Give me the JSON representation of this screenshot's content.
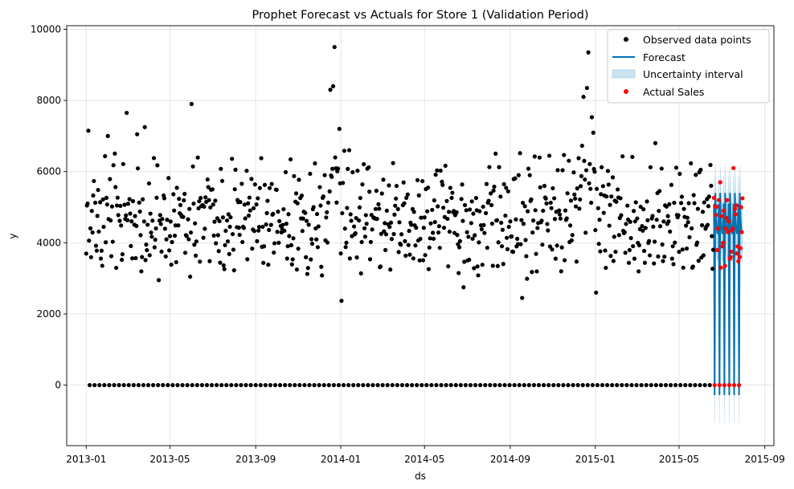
{
  "chart_data": {
    "type": "scatter",
    "title": "Prophet Forecast vs Actuals for Store 1 (Validation Period)",
    "xlabel": "ds",
    "ylabel": "y",
    "x_range": [
      "2012-12-04",
      "2015-09-14"
    ],
    "ylim": [
      -1700,
      10100
    ],
    "x_ticks": [
      "2013-01-01",
      "2013-05-01",
      "2013-09-01",
      "2014-01-01",
      "2014-05-01",
      "2014-09-01",
      "2015-01-01",
      "2015-05-01",
      "2015-09-01"
    ],
    "x_tick_labels": [
      "2013-01",
      "2013-05",
      "2013-09",
      "2014-01",
      "2014-05",
      "2014-09",
      "2015-01",
      "2015-05",
      "2015-09"
    ],
    "y_ticks": [
      0,
      2000,
      4000,
      6000,
      8000,
      10000
    ],
    "y_tick_labels": [
      "0",
      "2000",
      "4000",
      "6000",
      "8000",
      "10000"
    ],
    "grid": true,
    "legend_position": "top-right",
    "legend": [
      {
        "label": "Observed data points",
        "kind": "dot",
        "color": "#000000"
      },
      {
        "label": "Forecast",
        "kind": "line",
        "color": "#0072B2"
      },
      {
        "label": "Uncertainty interval",
        "kind": "band",
        "color": "#0072B2"
      },
      {
        "label": "Actual Sales",
        "kind": "dot",
        "color": "#ff0000"
      }
    ],
    "series": [
      {
        "name": "Observed data points",
        "color": "#000000",
        "x_start": "2013-01-01",
        "x_end": "2015-06-19",
        "sunday_value": 0,
        "weekly_pattern": [
          5500,
          4600,
          4300,
          4100,
          4400,
          5100
        ],
        "noise_amplitude": 1400,
        "outliers": [
          {
            "x": "2013-01-04",
            "y": 7150
          },
          {
            "x": "2013-02-01",
            "y": 7000
          },
          {
            "x": "2013-02-28",
            "y": 7650
          },
          {
            "x": "2013-03-15",
            "y": 7050
          },
          {
            "x": "2013-03-26",
            "y": 7250
          },
          {
            "x": "2013-04-15",
            "y": 2950
          },
          {
            "x": "2013-06-01",
            "y": 7900
          },
          {
            "x": "2013-12-17",
            "y": 8300
          },
          {
            "x": "2013-12-21",
            "y": 8400
          },
          {
            "x": "2013-12-23",
            "y": 9500
          },
          {
            "x": "2013-12-30",
            "y": 7200
          },
          {
            "x": "2014-01-02",
            "y": 2370
          },
          {
            "x": "2014-06-26",
            "y": 2750
          },
          {
            "x": "2014-09-18",
            "y": 2450
          },
          {
            "x": "2014-12-15",
            "y": 8100
          },
          {
            "x": "2014-12-20",
            "y": 8350
          },
          {
            "x": "2014-12-22",
            "y": 9350
          },
          {
            "x": "2015-01-02",
            "y": 2600
          },
          {
            "x": "2015-03-28",
            "y": 6800
          }
        ]
      },
      {
        "name": "Forecast",
        "color": "#0072B2",
        "x_start": "2015-06-20",
        "x_end": "2015-07-31",
        "sunday_value": -280,
        "weekday_values": [
          5400,
          4700,
          4400,
          4250,
          4350,
          5100
        ]
      },
      {
        "name": "Uncertainty interval",
        "color": "#0072B2",
        "half_width": 780
      },
      {
        "name": "Actual Sales",
        "color": "#ff0000",
        "x_start": "2015-06-20",
        "x_end": "2015-07-31",
        "sunday_value": 0,
        "values": [
          5263,
          0,
          5020,
          4782,
          5011,
          3795,
          4400,
          5200,
          0,
          5700,
          3300,
          4750,
          3900,
          4000,
          4900,
          0,
          3350,
          4400,
          4700,
          5200,
          4300,
          4600,
          0,
          3550,
          3600,
          3750,
          4350,
          4400,
          6100,
          0,
          4950,
          4800,
          5050,
          3700,
          3900,
          3480,
          0,
          3600,
          3850,
          5000,
          4300,
          5250
        ]
      }
    ]
  }
}
